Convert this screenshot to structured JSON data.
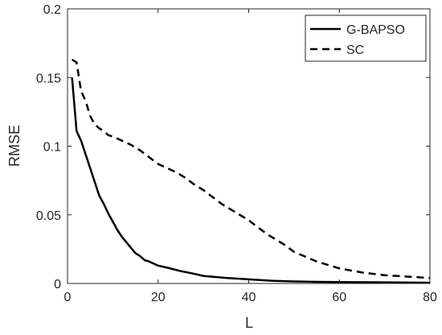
{
  "chart_data": {
    "type": "line",
    "title": "",
    "xlabel": "L",
    "ylabel": "RMSE",
    "xlim": [
      0,
      80
    ],
    "ylim": [
      0,
      0.2
    ],
    "xticks": [
      "0",
      "20",
      "40",
      "60",
      "80"
    ],
    "yticks": [
      "0",
      "0.05",
      "0.1",
      "0.15",
      "0.2"
    ],
    "grid": false,
    "legend_position": "top-right",
    "series": [
      {
        "name": "G-BAPSO",
        "style": "solid",
        "color": "#000000",
        "x": [
          1,
          2,
          3,
          4,
          5,
          6,
          7,
          8,
          9,
          10,
          11,
          12,
          13,
          14,
          15,
          16,
          17,
          18,
          20,
          22,
          25,
          28,
          30,
          35,
          40,
          45,
          50,
          55,
          60,
          70,
          80
        ],
        "y": [
          0.15,
          0.111,
          0.104,
          0.094,
          0.084,
          0.074,
          0.064,
          0.058,
          0.051,
          0.045,
          0.039,
          0.034,
          0.03,
          0.026,
          0.022,
          0.02,
          0.017,
          0.016,
          0.013,
          0.0115,
          0.009,
          0.007,
          0.0055,
          0.004,
          0.003,
          0.002,
          0.0015,
          0.0012,
          0.001,
          0.0008,
          0.0005
        ]
      },
      {
        "name": "SC",
        "style": "dashed",
        "color": "#000000",
        "x": [
          1,
          2,
          3,
          4,
          5,
          6,
          7,
          8,
          9,
          10,
          12,
          14,
          16,
          18,
          20,
          22,
          24,
          26,
          28,
          30,
          32,
          34,
          36,
          38,
          40,
          42,
          44,
          46,
          48,
          50,
          55,
          60,
          65,
          70,
          75,
          80
        ],
        "y": [
          0.163,
          0.161,
          0.14,
          0.133,
          0.122,
          0.116,
          0.113,
          0.111,
          0.108,
          0.107,
          0.104,
          0.101,
          0.097,
          0.092,
          0.087,
          0.084,
          0.081,
          0.077,
          0.072,
          0.068,
          0.063,
          0.058,
          0.054,
          0.05,
          0.046,
          0.041,
          0.036,
          0.032,
          0.028,
          0.023,
          0.016,
          0.011,
          0.008,
          0.006,
          0.005,
          0.004
        ]
      }
    ]
  }
}
